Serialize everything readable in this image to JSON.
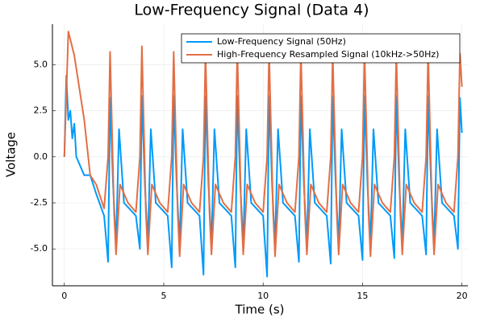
{
  "chart_data": {
    "type": "line",
    "title": "Low-Frequency Signal (Data 4)",
    "x_label": "Time (s)",
    "y_label": "Voltage",
    "xlim": [
      -0.6,
      20.3
    ],
    "ylim": [
      -7,
      7.2
    ],
    "xticks": [
      0,
      5,
      10,
      15,
      20
    ],
    "yticks": [
      {
        "value": -5,
        "label": "-5.0"
      },
      {
        "value": -2.5,
        "label": "-2.5"
      },
      {
        "value": 0,
        "label": "0.0"
      },
      {
        "value": 2.5,
        "label": "2.5"
      },
      {
        "value": 5,
        "label": "5.0"
      }
    ],
    "grid": true,
    "legend": "top-right",
    "series": [
      {
        "name": "Low-Frequency Signal (50Hz)",
        "color": "#009af9",
        "x": [
          0,
          0.1,
          0.2,
          0.3,
          0.4,
          0.5,
          0.6,
          0.8,
          1.0,
          1.3,
          1.6,
          2.0,
          2.2,
          2.3,
          2.45,
          2.6,
          2.75,
          3.0,
          3.6,
          3.8,
          3.9,
          4.05,
          4.2,
          4.35,
          4.6,
          5.2,
          5.4,
          5.5,
          5.65,
          5.8,
          5.95,
          6.2,
          6.8,
          7.0,
          7.1,
          7.25,
          7.4,
          7.55,
          7.8,
          8.4,
          8.6,
          8.7,
          8.85,
          9.0,
          9.15,
          9.4,
          10.0,
          10.2,
          10.3,
          10.45,
          10.6,
          10.75,
          11.0,
          11.6,
          11.8,
          11.9,
          12.05,
          12.2,
          12.35,
          12.6,
          13.2,
          13.4,
          13.5,
          13.65,
          13.8,
          13.95,
          14.2,
          14.8,
          15.0,
          15.1,
          15.25,
          15.4,
          15.55,
          15.8,
          16.4,
          16.6,
          16.7,
          16.85,
          17.0,
          17.15,
          17.4,
          18.0,
          18.2,
          18.3,
          18.45,
          18.6,
          18.75,
          19.0,
          19.6,
          19.8,
          19.9,
          20.0
        ],
        "values": [
          0,
          4.4,
          2,
          2.5,
          1,
          1.8,
          0,
          -0.5,
          -1,
          -1,
          -2,
          -3.2,
          -5.7,
          3.2,
          -1.5,
          -4.8,
          1.5,
          -2.5,
          -3.2,
          -5.0,
          3.3,
          -1.5,
          -4.8,
          1.5,
          -2.5,
          -3.2,
          -6.0,
          3.3,
          -1.5,
          -4.8,
          1.5,
          -2.5,
          -3.2,
          -6.4,
          3.3,
          -1.5,
          -4.8,
          1.5,
          -2.5,
          -3.2,
          -6.0,
          3.3,
          -1.5,
          -4.8,
          1.5,
          -2.5,
          -3.2,
          -6.5,
          3.3,
          -1.5,
          -4.8,
          1.5,
          -2.5,
          -3.2,
          -5.7,
          3.3,
          -1.5,
          -4.8,
          1.5,
          -2.5,
          -3.2,
          -5.8,
          3.3,
          -1.5,
          -4.8,
          1.5,
          -2.5,
          -3.2,
          -5.6,
          3.3,
          -1.5,
          -4.8,
          1.5,
          -2.5,
          -3.2,
          -5.5,
          3.3,
          -1.5,
          -4.8,
          1.5,
          -2.5,
          -3.2,
          -5.3,
          3.3,
          -1.5,
          -4.8,
          1.5,
          -2.5,
          -3.2,
          -5.0,
          3.2,
          1.3
        ]
      },
      {
        "name": "High-Frequency Resampled Signal (10kHz->50Hz)",
        "color": "#e26f46",
        "x": [
          0,
          0.2,
          0.5,
          1.0,
          1.3,
          1.6,
          2.0,
          2.2,
          2.3,
          2.5,
          2.6,
          2.8,
          3.2,
          3.6,
          3.8,
          3.9,
          4.1,
          4.2,
          4.4,
          4.8,
          5.2,
          5.4,
          5.5,
          5.7,
          5.8,
          6.0,
          6.4,
          6.8,
          7.0,
          7.1,
          7.3,
          7.4,
          7.6,
          8.0,
          8.4,
          8.6,
          8.7,
          8.9,
          9.0,
          9.2,
          9.6,
          10.0,
          10.2,
          10.3,
          10.5,
          10.6,
          10.8,
          11.2,
          11.6,
          11.8,
          11.9,
          12.1,
          12.2,
          12.4,
          12.8,
          13.2,
          13.4,
          13.5,
          13.7,
          13.8,
          14.0,
          14.4,
          14.8,
          15.0,
          15.1,
          15.3,
          15.4,
          15.6,
          16.0,
          16.4,
          16.6,
          16.7,
          16.9,
          17.0,
          17.2,
          17.6,
          18.0,
          18.2,
          18.3,
          18.5,
          18.6,
          18.8,
          19.2,
          19.6,
          19.8,
          19.9,
          20.0
        ],
        "values": [
          0,
          6.8,
          5.5,
          2,
          -1,
          -1.5,
          -2.8,
          0,
          5.7,
          -3,
          -5.3,
          -1.5,
          -2.5,
          -3,
          0,
          6.0,
          -3,
          -5.3,
          -1.5,
          -2.5,
          -3,
          0,
          5.7,
          -3,
          -5.4,
          -1.5,
          -2.5,
          -3,
          0,
          5.6,
          -3,
          -5.3,
          -1.5,
          -2.5,
          -3,
          0,
          5.8,
          -3,
          -5.3,
          -1.5,
          -2.5,
          -3,
          0,
          5.7,
          -3,
          -5.4,
          -1.5,
          -2.5,
          -3,
          0,
          5.7,
          -3,
          -5.3,
          -1.5,
          -2.5,
          -3,
          0,
          5.6,
          -3,
          -5.3,
          -1.5,
          -2.5,
          -3,
          0,
          5.7,
          -3,
          -5.4,
          -1.5,
          -2.5,
          -3,
          0,
          5.6,
          -3,
          -5.3,
          -1.5,
          -2.5,
          -3,
          0,
          5.7,
          -3,
          -5.3,
          -1.5,
          -2.5,
          -3,
          0,
          5.6,
          3.8
        ]
      }
    ]
  }
}
